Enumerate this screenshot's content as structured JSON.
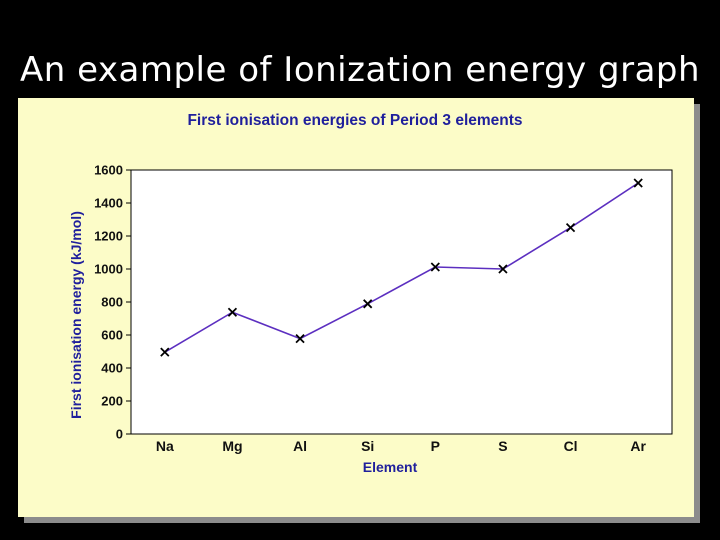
{
  "slide": {
    "title": "An example of Ionization energy graph"
  },
  "colors": {
    "background": "#000000",
    "panel": "#fcfcc8",
    "line": "#5c2fc0",
    "marker": "#000000",
    "title_text": "#1f1f9c"
  },
  "chart_data": {
    "type": "line",
    "title": "First ionisation energies of Period 3 elements",
    "xlabel": "Element",
    "ylabel": "First ionisation energy (kJ/mol)",
    "categories": [
      "Na",
      "Mg",
      "Al",
      "Si",
      "P",
      "S",
      "Cl",
      "Ar"
    ],
    "series": [
      {
        "values": [
          496,
          738,
          578,
          789,
          1012,
          1000,
          1251,
          1521
        ]
      }
    ],
    "ylim": [
      0,
      1600
    ],
    "yticks": [
      0,
      200,
      400,
      600,
      800,
      1000,
      1200,
      1400,
      1600
    ],
    "marker": "x",
    "grid": false,
    "legend": "none"
  }
}
